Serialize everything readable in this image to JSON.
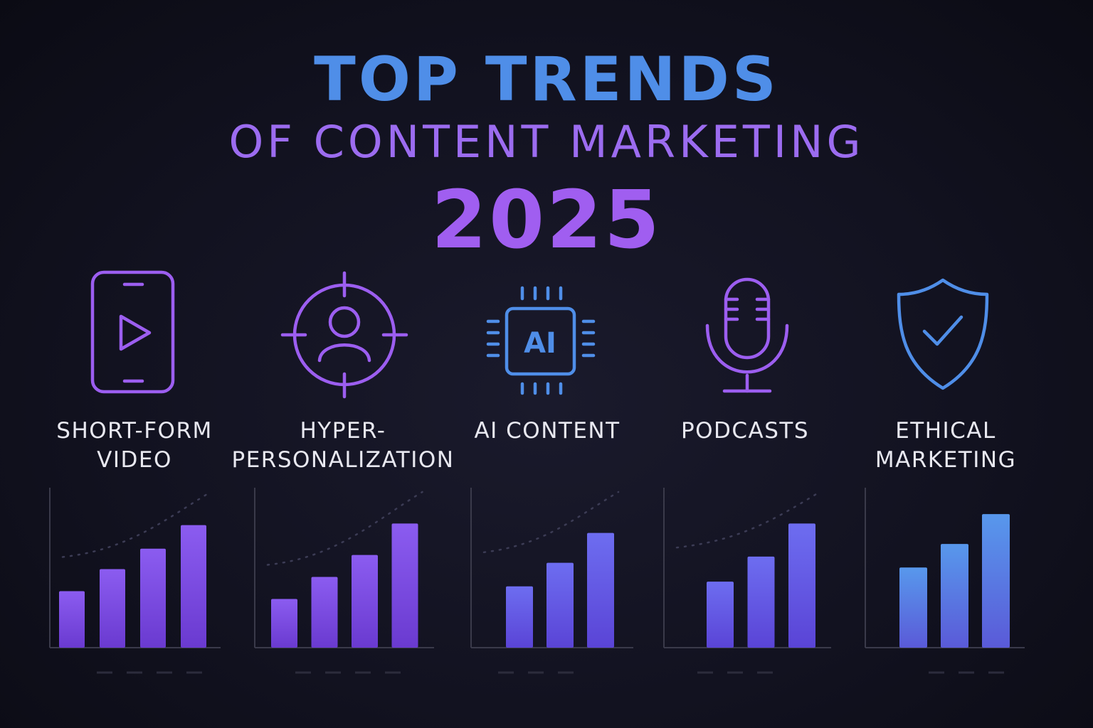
{
  "title": {
    "line1": "TOP TRENDS",
    "line2": "OF CONTENT MARKETING",
    "line3": "2025"
  },
  "colors": {
    "blue": "#4f8ee8",
    "purple": "#9c6cf0",
    "background": "#121220"
  },
  "trends": [
    {
      "icon": "smartphone-play-icon",
      "label_lines": [
        "SHORT-FORM",
        "VIDEO"
      ]
    },
    {
      "icon": "target-user-icon",
      "label_lines": [
        "HYPER-",
        "PERSONALIZATION"
      ]
    },
    {
      "icon": "ai-chip-icon",
      "icon_text": "AI",
      "label_lines": [
        "AI CONTENT"
      ]
    },
    {
      "icon": "microphone-icon",
      "label_lines": [
        "PODCASTS"
      ]
    },
    {
      "icon": "shield-check-icon",
      "label_lines": [
        "ETHICAL",
        "MARKETING"
      ]
    }
  ],
  "chart_data": [
    {
      "type": "bar",
      "trend": "SHORT-FORM VIDEO",
      "values": [
        36,
        50,
        63,
        78
      ],
      "ylim": [
        0,
        100
      ],
      "trendline": true
    },
    {
      "type": "bar",
      "trend": "HYPER-PERSONALIZATION",
      "values": [
        31,
        45,
        59,
        79
      ],
      "ylim": [
        0,
        100
      ],
      "trendline": true
    },
    {
      "type": "bar",
      "trend": "AI CONTENT",
      "values": [
        39,
        54,
        73
      ],
      "ylim": [
        0,
        100
      ],
      "trendline": true
    },
    {
      "type": "bar",
      "trend": "PODCASTS",
      "values": [
        42,
        58,
        79
      ],
      "ylim": [
        0,
        100
      ],
      "trendline": true
    },
    {
      "type": "bar",
      "trend": "ETHICAL MARKETING",
      "values": [
        51,
        66,
        85
      ],
      "ylim": [
        0,
        100
      ],
      "trendline": false
    }
  ]
}
